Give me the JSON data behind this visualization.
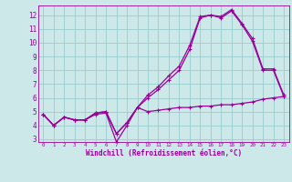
{
  "xlabel": "Windchill (Refroidissement éolien,°C)",
  "bg_color": "#cce8e8",
  "line_color": "#990099",
  "grid_color": "#99cccc",
  "xlim": [
    -0.5,
    23.5
  ],
  "ylim": [
    2.8,
    12.7
  ],
  "yticks": [
    3,
    4,
    5,
    6,
    7,
    8,
    9,
    10,
    11,
    12
  ],
  "xticks": [
    0,
    1,
    2,
    3,
    4,
    5,
    6,
    7,
    8,
    9,
    10,
    11,
    12,
    13,
    14,
    15,
    16,
    17,
    18,
    19,
    20,
    21,
    22,
    23
  ],
  "line1_x": [
    0,
    1,
    2,
    3,
    4,
    5,
    6,
    7,
    8,
    9,
    10,
    11,
    12,
    13,
    14,
    15,
    16,
    17,
    18,
    19,
    20,
    21,
    22,
    23
  ],
  "line1_y": [
    4.8,
    4.0,
    4.6,
    4.4,
    4.4,
    4.8,
    4.9,
    2.8,
    4.0,
    5.3,
    5.0,
    5.1,
    5.2,
    5.3,
    5.3,
    5.4,
    5.4,
    5.5,
    5.5,
    5.6,
    5.7,
    5.9,
    6.0,
    6.1
  ],
  "line2_x": [
    0,
    1,
    2,
    3,
    4,
    5,
    6,
    7,
    8,
    9,
    10,
    11,
    12,
    13,
    14,
    15,
    16,
    17,
    18,
    19,
    20,
    21,
    22,
    23
  ],
  "line2_y": [
    4.8,
    4.0,
    4.6,
    4.4,
    4.4,
    4.9,
    5.0,
    3.4,
    4.2,
    5.3,
    6.2,
    6.8,
    7.6,
    8.3,
    9.8,
    11.9,
    12.0,
    11.8,
    12.3,
    11.3,
    10.1,
    8.0,
    8.0,
    6.1
  ],
  "line3_x": [
    0,
    1,
    2,
    3,
    4,
    5,
    6,
    7,
    8,
    9,
    10,
    11,
    12,
    13,
    14,
    15,
    16,
    17,
    18,
    19,
    20,
    21,
    22,
    23
  ],
  "line3_y": [
    4.8,
    4.0,
    4.6,
    4.4,
    4.4,
    4.9,
    5.0,
    3.4,
    4.2,
    5.3,
    6.0,
    6.6,
    7.3,
    8.0,
    9.5,
    11.8,
    12.0,
    11.9,
    12.4,
    11.4,
    10.3,
    8.1,
    8.1,
    6.2
  ]
}
